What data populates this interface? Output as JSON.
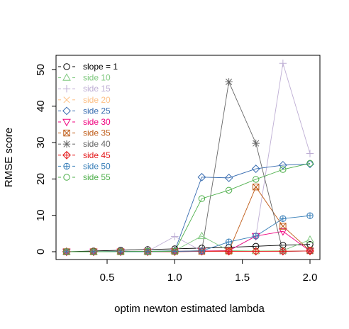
{
  "chart_data": {
    "type": "line",
    "xlabel": "optim newton estimated lambda",
    "ylabel": "RMSE score",
    "xlim": [
      0.2,
      2.0
    ],
    "ylim": [
      0,
      52
    ],
    "xticks": [
      0.5,
      1.0,
      1.5,
      2.0
    ],
    "xtick_labels": [
      "0.5",
      "1.0",
      "1.5",
      "2.0"
    ],
    "yticks": [
      0,
      10,
      20,
      30,
      40,
      50
    ],
    "ytick_labels": [
      "0",
      "10",
      "20",
      "30",
      "40",
      "50"
    ],
    "grid": false,
    "legend_position": "top-left",
    "x": [
      0.2,
      0.4,
      0.6,
      0.8,
      1.0,
      1.2,
      1.4,
      1.6,
      1.8,
      2.0
    ],
    "series": [
      {
        "name": "slope = 1",
        "color": "#000000",
        "marker": "circle",
        "values": [
          0.0,
          0.2,
          0.4,
          0.6,
          0.8,
          1.0,
          1.2,
          1.5,
          1.8,
          2.0
        ]
      },
      {
        "name": "side 10",
        "color": "#7fc97f",
        "marker": "triangle-up",
        "values": [
          0.0,
          0.0,
          0.1,
          0.1,
          0.3,
          4.3,
          0.3,
          0.2,
          0.3,
          3.3
        ]
      },
      {
        "name": "side 15",
        "color": "#beaed4",
        "marker": "plus",
        "values": [
          0.0,
          0.0,
          0.1,
          0.1,
          4.2,
          0.2,
          0.2,
          4.3,
          51.8,
          27.0
        ]
      },
      {
        "name": "side 20",
        "color": "#fdc086",
        "marker": "cross",
        "values": [
          0.0,
          0.0,
          0.0,
          0.1,
          0.1,
          0.1,
          0.1,
          0.1,
          0.2,
          0.2
        ]
      },
      {
        "name": "side 25",
        "color": "#386cb0",
        "marker": "diamond",
        "values": [
          0.0,
          0.0,
          0.1,
          0.1,
          0.2,
          20.5,
          20.3,
          22.8,
          23.8,
          24.1
        ]
      },
      {
        "name": "side 30",
        "color": "#f0027f",
        "marker": "triangle-down",
        "values": [
          0.0,
          0.0,
          0.0,
          0.0,
          0.1,
          0.2,
          0.3,
          4.3,
          5.6,
          0.2
        ]
      },
      {
        "name": "side 35",
        "color": "#bf5b17",
        "marker": "square-cross",
        "values": [
          0.0,
          0.0,
          0.0,
          0.0,
          0.1,
          0.1,
          0.2,
          17.8,
          7.0,
          0.3
        ]
      },
      {
        "name": "side 40",
        "color": "#666666",
        "marker": "asterisk",
        "values": [
          0.0,
          0.0,
          0.0,
          0.1,
          0.1,
          0.3,
          46.7,
          29.8,
          0.1,
          0.2
        ]
      },
      {
        "name": "side 45",
        "color": "#e41a1c",
        "marker": "diamond-plus",
        "values": [
          0.0,
          0.0,
          0.0,
          0.0,
          0.0,
          0.1,
          0.1,
          0.1,
          0.1,
          0.2
        ]
      },
      {
        "name": "side 50",
        "color": "#377eb8",
        "marker": "circle-plus",
        "values": [
          0.0,
          0.0,
          0.0,
          0.0,
          0.1,
          0.2,
          2.7,
          4.3,
          9.1,
          9.9
        ]
      },
      {
        "name": "side 55",
        "color": "#4daf4a",
        "marker": "circle",
        "values": [
          0.0,
          0.0,
          0.0,
          0.1,
          0.1,
          14.6,
          16.9,
          19.9,
          22.6,
          24.3
        ]
      }
    ]
  }
}
